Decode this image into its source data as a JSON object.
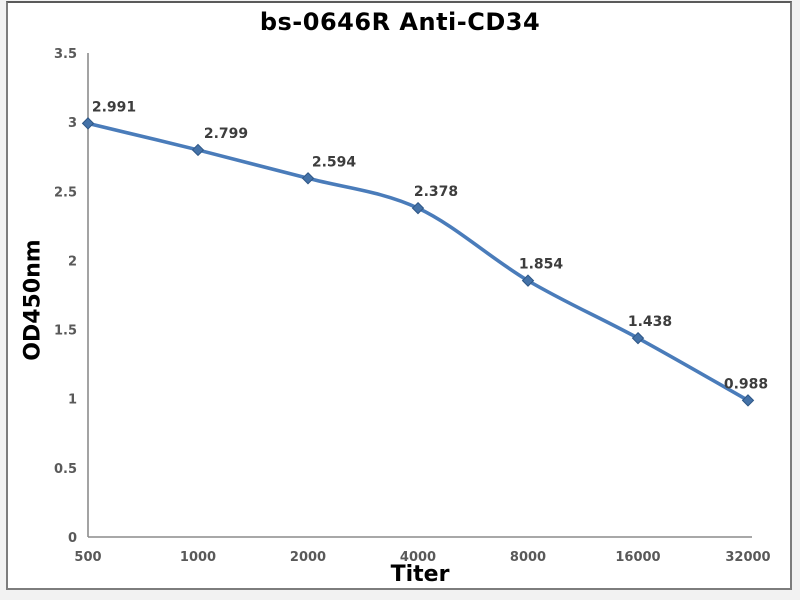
{
  "chart_data": {
    "type": "line",
    "title": "bs-0646R Anti-CD34",
    "xlabel": "Titer",
    "ylabel": "OD450nm",
    "categories": [
      "500",
      "1000",
      "2000",
      "4000",
      "8000",
      "16000",
      "32000"
    ],
    "series": [
      {
        "name": "OD450nm",
        "values": [
          2.991,
          2.799,
          2.594,
          2.378,
          1.854,
          1.438,
          0.988
        ]
      }
    ],
    "data_labels": [
      "2.991",
      "2.799",
      "2.594",
      "2.378",
      "1.854",
      "1.438",
      "0.988"
    ],
    "y_ticks": [
      "0",
      "0.5",
      "1",
      "1.5",
      "2",
      "2.5",
      "3",
      "3.5"
    ],
    "ylim": [
      0,
      3.5
    ],
    "y_tick_step": 0.5,
    "grid": false,
    "legend": "none",
    "smooth": true,
    "marker": "diamond",
    "colors": {
      "line": "#4a7cba",
      "marker_fill": "#4472a8",
      "marker_border": "#2f5786",
      "axis_line": "#8c8c8c",
      "tick_label": "#595959",
      "data_label": "#3d3d3d",
      "title_text": "#000000",
      "frame_border": "#7d7d7d",
      "plot_background": "#ffffff"
    }
  }
}
